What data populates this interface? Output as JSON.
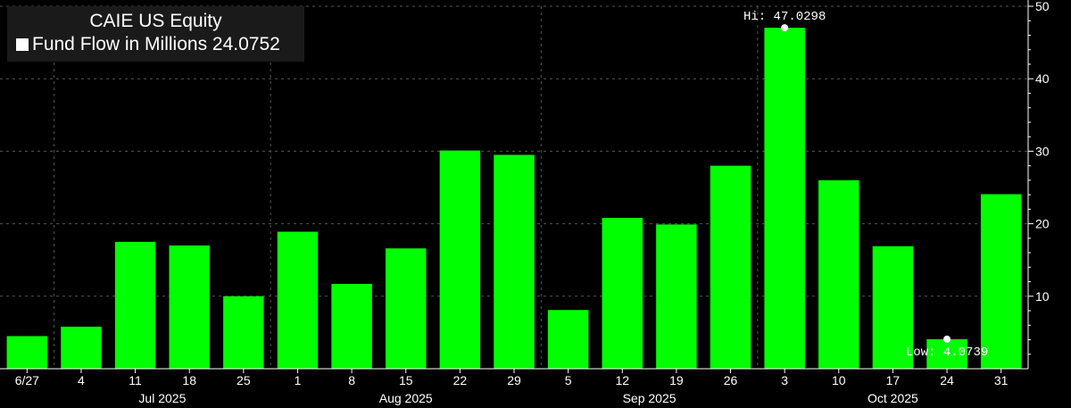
{
  "legend": {
    "title": "CAIE US Equity",
    "series_label": "Fund Flow in Millions",
    "last_value": "24.0752"
  },
  "chart_data": {
    "type": "bar",
    "categories": [
      "6/27",
      "4",
      "11",
      "18",
      "25",
      "1",
      "8",
      "15",
      "22",
      "29",
      "5",
      "12",
      "19",
      "26",
      "3",
      "10",
      "17",
      "24",
      "31"
    ],
    "months": [
      {
        "label": "Jul 2025",
        "from": 1,
        "to": 4
      },
      {
        "label": "Aug 2025",
        "from": 5,
        "to": 9
      },
      {
        "label": "Sep 2025",
        "from": 10,
        "to": 13
      },
      {
        "label": "Oct 2025",
        "from": 14,
        "to": 18
      }
    ],
    "series": [
      {
        "name": "Fund Flow in Millions",
        "color": "#00ff00",
        "values": [
          4.5,
          5.8,
          17.5,
          17.0,
          10.0,
          18.9,
          11.7,
          16.6,
          30.1,
          29.5,
          8.1,
          20.8,
          19.9,
          28.0,
          47.0298,
          26.0,
          16.9,
          4.0739,
          24.0752
        ]
      }
    ],
    "ylim": [
      0,
      50
    ],
    "yticks": [
      10,
      20,
      30,
      40,
      50
    ],
    "grid": true,
    "annotations": {
      "high": {
        "label": "Hi: 47.0298",
        "index": 14,
        "value": 47.0298
      },
      "low": {
        "label": "Low: 4.0739",
        "index": 17,
        "value": 4.0739
      }
    },
    "axis_color": "#ffffff",
    "grid_color": "#555555"
  }
}
